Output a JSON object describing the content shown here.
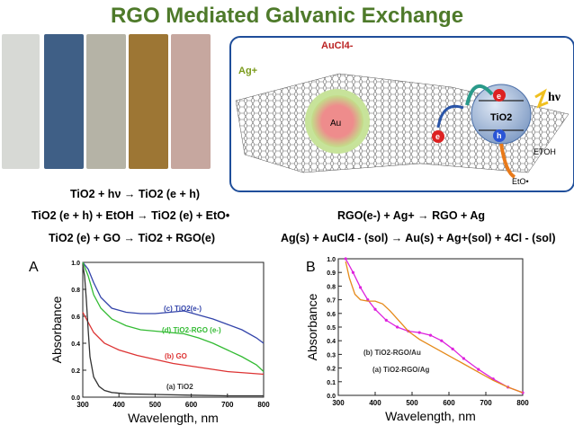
{
  "title": "RGO Mediated Galvanic Exchange",
  "vial_colors": [
    "#d7d9d5",
    "#3f5f86",
    "#b5b3a6",
    "#9d7634",
    "#c6a79f"
  ],
  "scheme": {
    "aucl4": "AuCl4-",
    "ag": "Ag+",
    "au": "Au",
    "tio2": "TiO2",
    "e": "e",
    "h": "h",
    "hv": "hν",
    "etoh": "ETOH",
    "eto": "EtO•"
  },
  "equations_left": [
    "TiO2 + hν → TiO2 (e + h)",
    "TiO2 (e + h) + EtOH → TiO2 (e) + EtO•",
    "TiO2 (e) + GO → TiO2 + RGO(e)"
  ],
  "equations_right": [
    "RGO(e-) + Ag+ → RGO + Ag",
    "Ag(s) + AuCl4 - (sol) → Au(s) + Ag+(sol) + 4Cl - (sol)"
  ],
  "chart_data": [
    {
      "type": "line",
      "panel_label": "A",
      "xlabel": "Wavelength, nm",
      "ylabel": "Absorbance",
      "xlim": [
        300,
        800
      ],
      "ylim": [
        0,
        1.0
      ],
      "xticks": [
        "300",
        "400",
        "500",
        "600",
        "700",
        "800"
      ],
      "yticks": [
        "0.0",
        "0.2",
        "0.4",
        "0.6",
        "0.8",
        "1.0"
      ],
      "series": [
        {
          "name": "(c) TiO2(e-)",
          "color": "#3344aa",
          "x": [
            300,
            315,
            330,
            350,
            380,
            420,
            460,
            500,
            540,
            580,
            620,
            660,
            700,
            740,
            780,
            800
          ],
          "y": [
            1.0,
            0.95,
            0.85,
            0.74,
            0.66,
            0.63,
            0.62,
            0.62,
            0.63,
            0.64,
            0.61,
            0.58,
            0.54,
            0.5,
            0.44,
            0.4
          ]
        },
        {
          "name": "(d) TiO2-RGO (e-)",
          "color": "#33bb33",
          "x": [
            300,
            315,
            330,
            350,
            380,
            420,
            460,
            500,
            540,
            580,
            620,
            660,
            700,
            740,
            780,
            800
          ],
          "y": [
            1.0,
            0.9,
            0.76,
            0.66,
            0.58,
            0.53,
            0.5,
            0.49,
            0.48,
            0.47,
            0.44,
            0.4,
            0.35,
            0.3,
            0.24,
            0.19
          ]
        },
        {
          "name": "(b) GO",
          "color": "#dd3333",
          "x": [
            300,
            310,
            330,
            360,
            400,
            450,
            500,
            550,
            600,
            650,
            700,
            750,
            800
          ],
          "y": [
            0.63,
            0.58,
            0.48,
            0.4,
            0.35,
            0.31,
            0.28,
            0.25,
            0.23,
            0.21,
            0.19,
            0.18,
            0.17
          ]
        },
        {
          "name": "(a) TiO2",
          "color": "#333333",
          "x": [
            300,
            305,
            310,
            315,
            320,
            330,
            345,
            360,
            380,
            420,
            500,
            600,
            700,
            800
          ],
          "y": [
            0.98,
            0.9,
            0.72,
            0.5,
            0.3,
            0.15,
            0.08,
            0.05,
            0.035,
            0.025,
            0.02,
            0.015,
            0.01,
            0.01
          ]
        }
      ],
      "series_labels": [
        {
          "text": "(c) TiO2(e-)",
          "color": "#3344aa"
        },
        {
          "text": "(d) TiO2-RGO (e-)",
          "color": "#33bb33"
        },
        {
          "text": "(b) GO",
          "color": "#dd3333"
        },
        {
          "text": "(a) TiO2",
          "color": "#333333"
        }
      ]
    },
    {
      "type": "line",
      "panel_label": "B",
      "xlabel": "Wavelength, nm",
      "ylabel": "Absorbance",
      "xlim": [
        300,
        800
      ],
      "ylim": [
        0,
        1.0
      ],
      "xticks": [
        "300",
        "400",
        "500",
        "600",
        "700",
        "800"
      ],
      "yticks": [
        "0.0",
        "0.1",
        "0.2",
        "0.3",
        "0.4",
        "0.5",
        "0.6",
        "0.7",
        "0.8",
        "0.9",
        "1.0"
      ],
      "series": [
        {
          "name": "(b) TiO2-RGO/Au",
          "color": "#dd22dd",
          "x": [
            320,
            340,
            360,
            380,
            400,
            430,
            460,
            490,
            520,
            550,
            580,
            610,
            640,
            680,
            720,
            760,
            800
          ],
          "y": [
            1.0,
            0.9,
            0.79,
            0.7,
            0.63,
            0.55,
            0.5,
            0.47,
            0.46,
            0.44,
            0.4,
            0.34,
            0.27,
            0.19,
            0.12,
            0.06,
            0.02
          ]
        },
        {
          "name": "(a) TiO2-RGO/Ag",
          "color": "#e58a1a",
          "x": [
            320,
            330,
            345,
            360,
            380,
            400,
            420,
            440,
            460,
            490,
            520,
            560,
            600,
            640,
            680,
            720,
            760,
            800
          ],
          "y": [
            0.98,
            0.86,
            0.74,
            0.7,
            0.69,
            0.69,
            0.67,
            0.62,
            0.56,
            0.47,
            0.41,
            0.35,
            0.29,
            0.23,
            0.17,
            0.11,
            0.06,
            0.02
          ]
        }
      ],
      "series_labels": [
        {
          "text": "(b) TiO2-RGO/Au",
          "color": "#333333"
        },
        {
          "text": "(a) TiO2-RGO/Ag",
          "color": "#333333"
        }
      ]
    }
  ]
}
